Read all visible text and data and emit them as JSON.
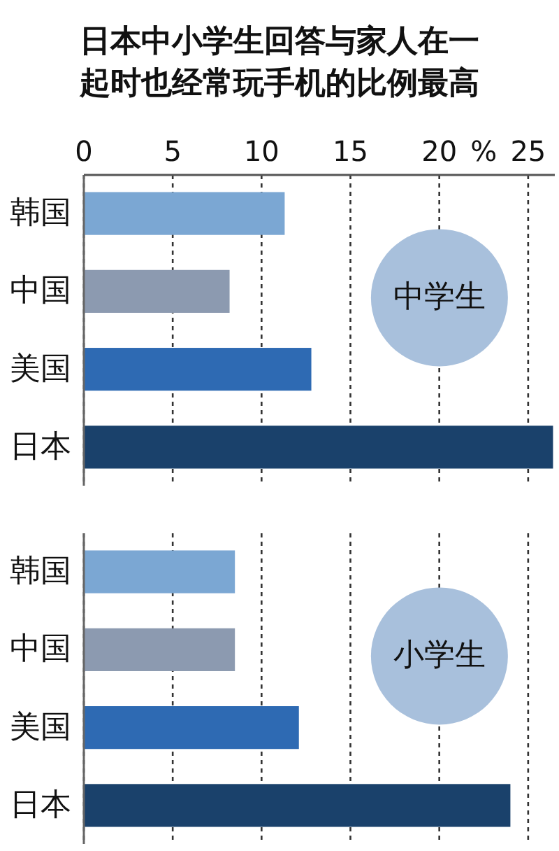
{
  "chart_data": [
    {
      "type": "bar",
      "orientation": "horizontal",
      "title": "日本中小学生回答与家人在一起时也经常玩手机的比例最高",
      "xlabel": "%",
      "categories": [
        "韩国",
        "中国",
        "美国",
        "日本"
      ],
      "values": [
        11.3,
        8.2,
        12.8,
        26.4
      ],
      "colors": [
        "#7ba7d3",
        "#8c9ab0",
        "#2e6ab3",
        "#1a416b"
      ],
      "xlim": [
        0,
        26.5
      ],
      "xticks": [
        0,
        5,
        10,
        15,
        20,
        25
      ],
      "grid": "x",
      "annotations": [
        "中学生"
      ]
    },
    {
      "type": "bar",
      "orientation": "horizontal",
      "categories": [
        "韩国",
        "中国",
        "美国",
        "日本"
      ],
      "values": [
        8.5,
        8.5,
        12.1,
        24.0
      ],
      "colors": [
        "#7ba7d3",
        "#8c9ab0",
        "#2e6ab3",
        "#1a416b"
      ],
      "xlim": [
        0,
        25
      ],
      "xticks": [
        0,
        5,
        10,
        15,
        20,
        25
      ],
      "grid": "x",
      "tick_labels": "y",
      "annotations": [
        "小学生"
      ]
    }
  ]
}
